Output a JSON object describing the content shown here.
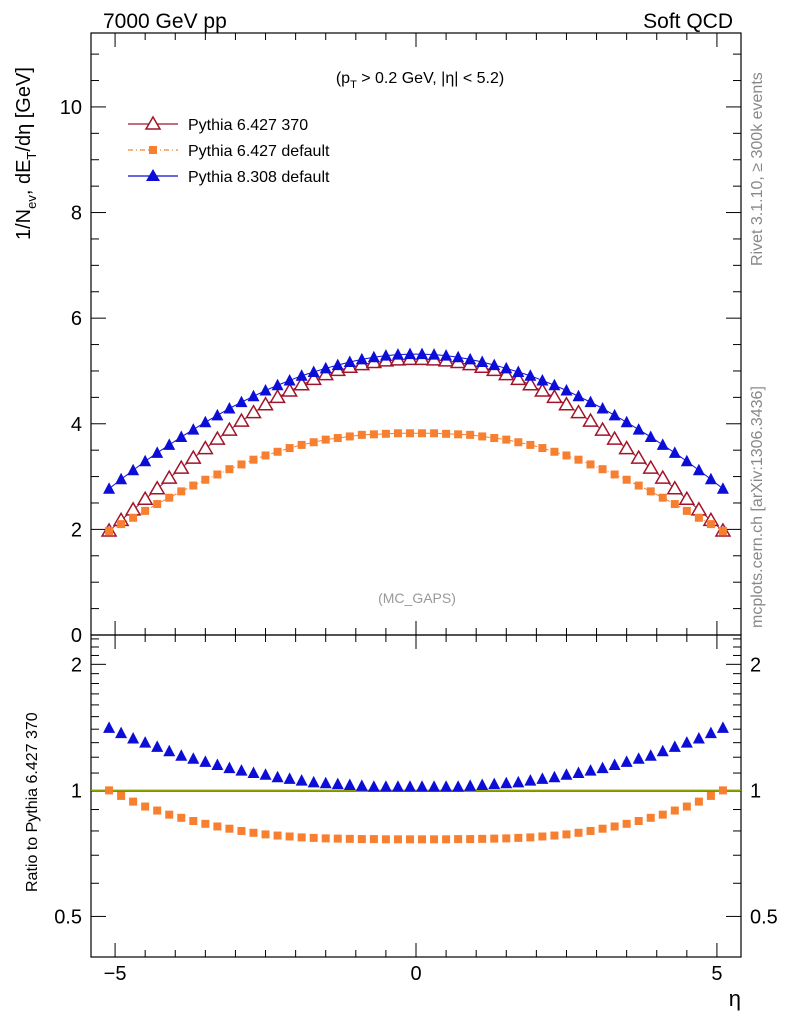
{
  "header": {
    "left": "7000 GeV pp",
    "right": "Soft QCD"
  },
  "side_labels": {
    "top": "Rivet 3.1.10, ≥ 300k events",
    "bottom": "mcplots.cern.ch [arXiv:1306.3436]"
  },
  "cut_label": {
    "part1": "(p",
    "sub": "T",
    "part2": " > 0.2 GeV, |η| < 5.2)"
  },
  "analysis_label": "(MC_GAPS)",
  "colors": {
    "pythia6_370": "#a0142a",
    "pythia6_default": "#f77f30",
    "pythia8_default": "#0d0dd8",
    "reference_line": "#8ea000"
  },
  "chart_data": [
    {
      "type": "line",
      "panel": "main",
      "ylabel": {
        "p1": "1/N",
        "s1": "ev",
        "p2": ", dE",
        "s2": "T",
        "p3": "/dη [GeV]"
      },
      "xlim": [
        -5.4,
        5.4
      ],
      "ylim": [
        0,
        11.4
      ],
      "y_ticks": [
        0,
        2,
        4,
        6,
        8,
        10
      ],
      "y_tick_labels": [
        "0",
        "2",
        "4",
        "6",
        "8",
        "10"
      ],
      "legend_position": "top-left",
      "x": [
        -5.1,
        -4.9,
        -4.7,
        -4.5,
        -4.3,
        -4.1,
        -3.9,
        -3.7,
        -3.5,
        -3.3,
        -3.1,
        -2.9,
        -2.7,
        -2.5,
        -2.3,
        -2.1,
        -1.9,
        -1.7,
        -1.5,
        -1.3,
        -1.1,
        -0.9,
        -0.7,
        -0.5,
        -0.3,
        -0.1,
        0.1,
        0.3,
        0.5,
        0.7,
        0.9,
        1.1,
        1.3,
        1.5,
        1.7,
        1.9,
        2.1,
        2.3,
        2.5,
        2.7,
        2.9,
        3.1,
        3.3,
        3.5,
        3.7,
        3.9,
        4.1,
        4.3,
        4.5,
        4.7,
        4.9,
        5.1
      ],
      "series": [
        {
          "name": "Pythia 6.427 370",
          "marker": "open-triangle",
          "values": [
            1.97,
            2.17,
            2.37,
            2.57,
            2.77,
            2.97,
            3.16,
            3.35,
            3.53,
            3.71,
            3.88,
            4.05,
            4.21,
            4.36,
            4.5,
            4.62,
            4.74,
            4.84,
            4.93,
            5.01,
            5.07,
            5.12,
            5.16,
            5.19,
            5.21,
            5.22,
            5.22,
            5.21,
            5.19,
            5.16,
            5.12,
            5.07,
            5.01,
            4.93,
            4.84,
            4.74,
            4.62,
            4.5,
            4.36,
            4.21,
            4.05,
            3.88,
            3.71,
            3.53,
            3.35,
            3.16,
            2.97,
            2.77,
            2.57,
            2.37,
            2.17,
            1.97
          ]
        },
        {
          "name": "Pythia 6.427 default",
          "marker": "filled-square",
          "values": [
            1.97,
            2.1,
            2.22,
            2.35,
            2.48,
            2.6,
            2.72,
            2.83,
            2.94,
            3.04,
            3.14,
            3.23,
            3.32,
            3.4,
            3.47,
            3.54,
            3.6,
            3.65,
            3.7,
            3.73,
            3.76,
            3.79,
            3.8,
            3.81,
            3.82,
            3.82,
            3.82,
            3.82,
            3.81,
            3.8,
            3.79,
            3.76,
            3.73,
            3.7,
            3.65,
            3.6,
            3.54,
            3.47,
            3.4,
            3.32,
            3.23,
            3.14,
            3.04,
            2.94,
            2.83,
            2.72,
            2.6,
            2.48,
            2.35,
            2.22,
            2.1,
            1.97
          ]
        },
        {
          "name": "Pythia 8.308 default",
          "marker": "filled-triangle",
          "values": [
            2.77,
            2.95,
            3.12,
            3.29,
            3.45,
            3.6,
            3.75,
            3.89,
            4.03,
            4.16,
            4.29,
            4.41,
            4.52,
            4.63,
            4.73,
            4.82,
            4.91,
            4.98,
            5.05,
            5.11,
            5.17,
            5.22,
            5.26,
            5.29,
            5.31,
            5.32,
            5.32,
            5.31,
            5.29,
            5.26,
            5.22,
            5.17,
            5.11,
            5.05,
            4.98,
            4.91,
            4.82,
            4.73,
            4.63,
            4.52,
            4.41,
            4.29,
            4.16,
            4.03,
            3.89,
            3.75,
            3.6,
            3.45,
            3.29,
            3.12,
            2.95,
            2.77
          ]
        }
      ]
    },
    {
      "type": "line",
      "panel": "ratio",
      "ylabel": "Ratio to Pythia 6.427 370",
      "xlabel": "η",
      "y_scale": "log",
      "xlim": [
        -5.4,
        5.4
      ],
      "ylim": [
        0.4,
        2.35
      ],
      "x_ticks": [
        -5,
        0,
        5
      ],
      "x_tick_labels": [
        "−5",
        "0",
        "5"
      ],
      "y_ticks": [
        0.5,
        1,
        2
      ],
      "y_tick_labels": [
        "0.5",
        "1",
        "2"
      ],
      "x": [
        -5.1,
        -4.9,
        -4.7,
        -4.5,
        -4.3,
        -4.1,
        -3.9,
        -3.7,
        -3.5,
        -3.3,
        -3.1,
        -2.9,
        -2.7,
        -2.5,
        -2.3,
        -2.1,
        -1.9,
        -1.7,
        -1.5,
        -1.3,
        -1.1,
        -0.9,
        -0.7,
        -0.5,
        -0.3,
        -0.1,
        0.1,
        0.3,
        0.5,
        0.7,
        0.9,
        1.1,
        1.3,
        1.5,
        1.7,
        1.9,
        2.1,
        2.3,
        2.5,
        2.7,
        2.9,
        3.1,
        3.3,
        3.5,
        3.7,
        3.9,
        4.1,
        4.3,
        4.5,
        4.7,
        4.9,
        5.1
      ],
      "series": [
        {
          "name": "Pythia 6.427 default",
          "marker": "filled-square",
          "values": [
            1.0,
            0.97,
            0.94,
            0.915,
            0.895,
            0.875,
            0.86,
            0.845,
            0.832,
            0.82,
            0.81,
            0.8,
            0.792,
            0.785,
            0.78,
            0.776,
            0.772,
            0.77,
            0.768,
            0.767,
            0.766,
            0.765,
            0.765,
            0.764,
            0.764,
            0.764,
            0.764,
            0.764,
            0.764,
            0.765,
            0.765,
            0.766,
            0.767,
            0.768,
            0.77,
            0.772,
            0.776,
            0.78,
            0.785,
            0.792,
            0.8,
            0.81,
            0.82,
            0.832,
            0.845,
            0.86,
            0.875,
            0.895,
            0.915,
            0.94,
            0.97,
            1.0
          ]
        },
        {
          "name": "Pythia 8.308 default",
          "marker": "filled-triangle",
          "values": [
            1.41,
            1.37,
            1.33,
            1.3,
            1.27,
            1.24,
            1.21,
            1.19,
            1.17,
            1.15,
            1.13,
            1.115,
            1.1,
            1.09,
            1.075,
            1.065,
            1.055,
            1.045,
            1.04,
            1.035,
            1.03,
            1.025,
            1.02,
            1.02,
            1.02,
            1.02,
            1.02,
            1.02,
            1.02,
            1.02,
            1.025,
            1.03,
            1.035,
            1.04,
            1.045,
            1.055,
            1.065,
            1.075,
            1.09,
            1.1,
            1.115,
            1.13,
            1.15,
            1.17,
            1.19,
            1.21,
            1.24,
            1.27,
            1.3,
            1.33,
            1.37,
            1.41
          ]
        }
      ]
    }
  ]
}
